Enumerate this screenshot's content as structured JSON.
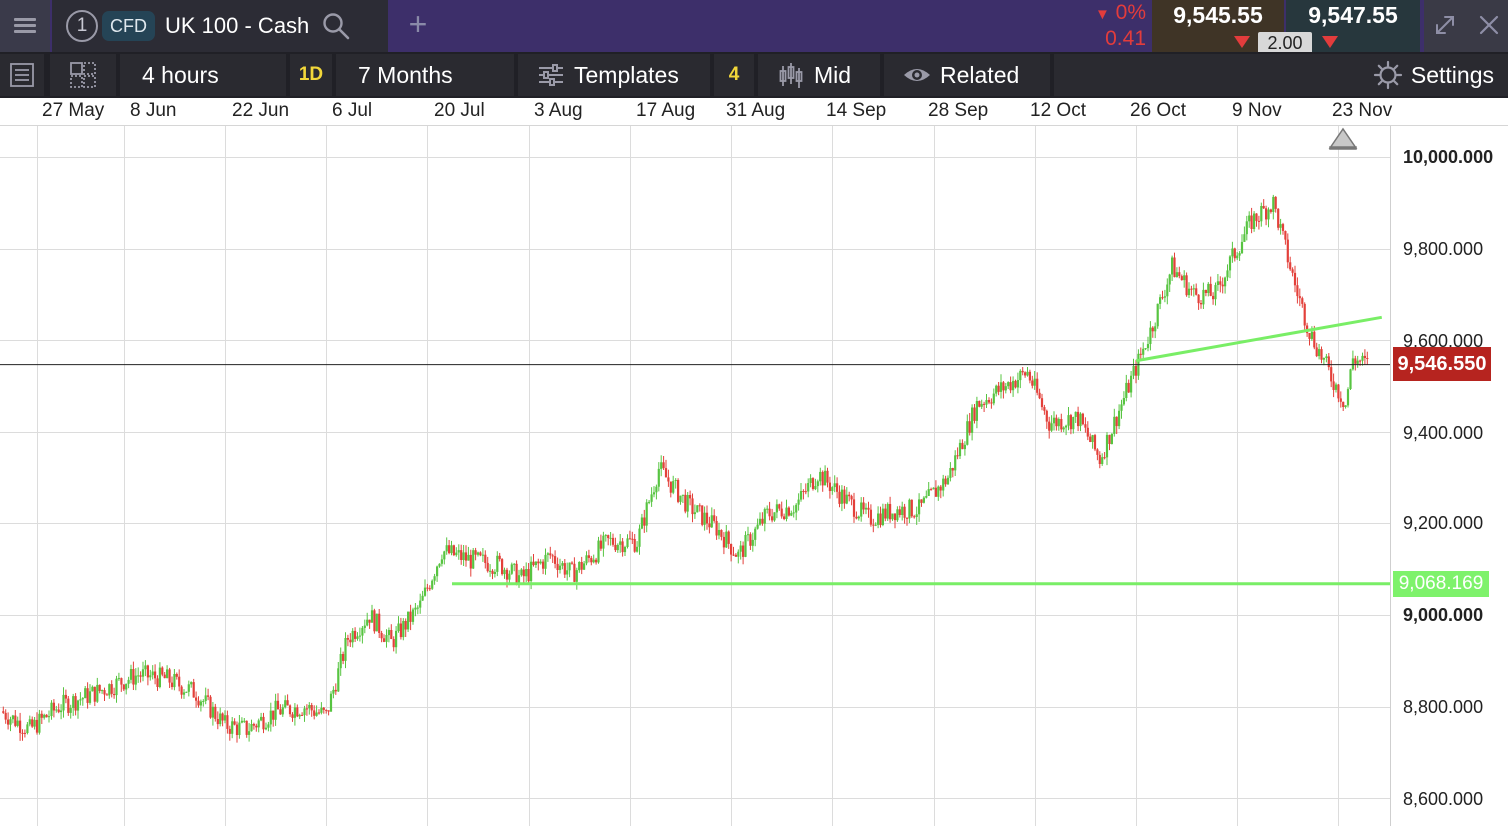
{
  "topbar": {
    "tab_number": "1",
    "badge": "CFD",
    "instrument": "UK 100 - Cash",
    "change_percent": "0%",
    "change_value": "0.41",
    "sell_price": "9,545.55",
    "buy_price": "9,547.55",
    "spread": "2.00",
    "colors": {
      "down": "#e23c3c",
      "topbar": "#3d2f6a"
    }
  },
  "toolbar": {
    "interval": "4 hours",
    "interval_badge": "1D",
    "range": "7 Months",
    "templates": "Templates",
    "indicator_count": "4",
    "price_type": "Mid",
    "related": "Related",
    "settings": "Settings"
  },
  "date_axis": [
    "27 May",
    "8 Jun",
    "22 Jun",
    "6 Jul",
    "20 Jul",
    "3 Aug",
    "17 Aug",
    "31 Aug",
    "14 Sep",
    "28 Sep",
    "12 Oct",
    "26 Oct",
    "9 Nov",
    "23 Nov"
  ],
  "price_axis": {
    "ticks": [
      "10,000.000",
      "9,800.000",
      "9,600.000",
      "9,400.000",
      "9,200.000",
      "9,000.000",
      "8,800.000",
      "8,600.000"
    ],
    "current_price": "9,546.550",
    "support_level": "9,068.169"
  },
  "chart_data": {
    "type": "candlestick",
    "ylim": [
      8580,
      10050
    ],
    "up_color": "#57c441",
    "down_color": "#e3403a",
    "current_price": 9546.55,
    "horizontal_support": 9068.169,
    "trendline": {
      "start": {
        "date": "26 Oct",
        "price": 9555
      },
      "end": {
        "date": "29 Nov",
        "price": 9650
      }
    },
    "swing_closes": [
      {
        "date": "22 May",
        "price": 8790
      },
      {
        "date": "26 May",
        "price": 8750
      },
      {
        "date": "30 May",
        "price": 8800
      },
      {
        "date": "4 Jun",
        "price": 8830
      },
      {
        "date": "10 Jun",
        "price": 8870
      },
      {
        "date": "14 Jun",
        "price": 8860
      },
      {
        "date": "18 Jun",
        "price": 8830
      },
      {
        "date": "22 Jun",
        "price": 8760
      },
      {
        "date": "25 Jun",
        "price": 8750
      },
      {
        "date": "29 Jun",
        "price": 8790
      },
      {
        "date": "3 Jul",
        "price": 8800
      },
      {
        "date": "6 Jul",
        "price": 8780
      },
      {
        "date": "9 Jul",
        "price": 8950
      },
      {
        "date": "12 Jul",
        "price": 9000
      },
      {
        "date": "15 Jul",
        "price": 8940
      },
      {
        "date": "19 Jul",
        "price": 9020
      },
      {
        "date": "22 Jul",
        "price": 9140
      },
      {
        "date": "26 Jul",
        "price": 9120
      },
      {
        "date": "30 Jul",
        "price": 9110
      },
      {
        "date": "2 Aug",
        "price": 9080
      },
      {
        "date": "6 Aug",
        "price": 9130
      },
      {
        "date": "9 Aug",
        "price": 9090
      },
      {
        "date": "14 Aug",
        "price": 9160
      },
      {
        "date": "18 Aug",
        "price": 9160
      },
      {
        "date": "21 Aug",
        "price": 9320
      },
      {
        "date": "25 Aug",
        "price": 9240
      },
      {
        "date": "29 Aug",
        "price": 9190
      },
      {
        "date": "1 Sep",
        "price": 9130
      },
      {
        "date": "5 Sep",
        "price": 9220
      },
      {
        "date": "9 Sep",
        "price": 9240
      },
      {
        "date": "12 Sep",
        "price": 9310
      },
      {
        "date": "16 Sep",
        "price": 9250
      },
      {
        "date": "19 Sep",
        "price": 9210
      },
      {
        "date": "23 Sep",
        "price": 9230
      },
      {
        "date": "26 Sep",
        "price": 9230
      },
      {
        "date": "30 Sep",
        "price": 9300
      },
      {
        "date": "4 Oct",
        "price": 9460
      },
      {
        "date": "8 Oct",
        "price": 9500
      },
      {
        "date": "11 Oct",
        "price": 9530
      },
      {
        "date": "14 Oct",
        "price": 9420
      },
      {
        "date": "18 Oct",
        "price": 9430
      },
      {
        "date": "21 Oct",
        "price": 9340
      },
      {
        "date": "24 Oct",
        "price": 9460
      },
      {
        "date": "28 Oct",
        "price": 9620
      },
      {
        "date": "31 Oct",
        "price": 9760
      },
      {
        "date": "3 Nov",
        "price": 9700
      },
      {
        "date": "6 Nov",
        "price": 9700
      },
      {
        "date": "8 Nov",
        "price": 9770
      },
      {
        "date": "11 Nov",
        "price": 9860
      },
      {
        "date": "14 Nov",
        "price": 9900
      },
      {
        "date": "17 Nov",
        "price": 9720
      },
      {
        "date": "19 Nov",
        "price": 9620
      },
      {
        "date": "22 Nov",
        "price": 9520
      },
      {
        "date": "24 Nov",
        "price": 9460
      },
      {
        "date": "25 Nov",
        "price": 9560
      },
      {
        "date": "27 Nov",
        "price": 9546.55
      }
    ]
  }
}
